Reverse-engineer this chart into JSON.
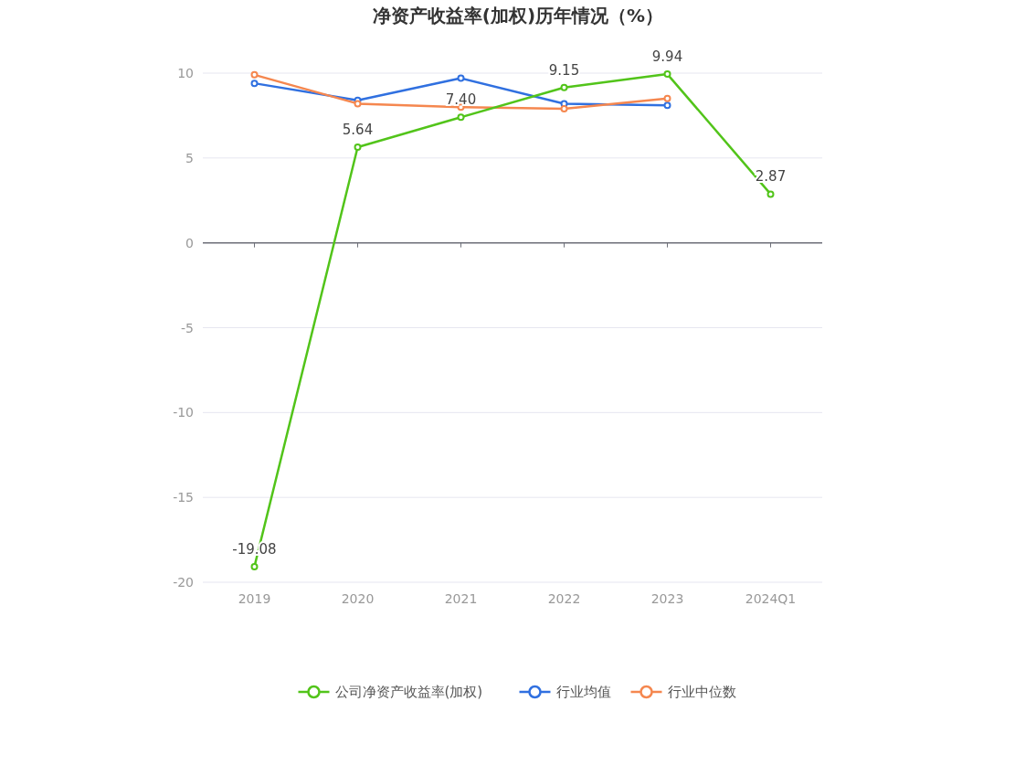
{
  "chart_data": {
    "type": "line",
    "title": "净资产收益率(加权)历年情况（%）",
    "categories": [
      "2019",
      "2020",
      "2021",
      "2022",
      "2023",
      "2024Q1"
    ],
    "series": [
      {
        "name": "公司净资产收益率(加权)",
        "color": "#52c41a",
        "values": [
          -19.08,
          5.64,
          7.4,
          9.15,
          9.94,
          2.87
        ],
        "value_labels": [
          "-19.08",
          "5.64",
          "7.40",
          "9.15",
          "9.94",
          "2.87"
        ]
      },
      {
        "name": "行业均值",
        "color": "#3070e0",
        "values": [
          9.4,
          8.4,
          9.7,
          8.2,
          8.1,
          null
        ]
      },
      {
        "name": "行业中位数",
        "color": "#f5874f",
        "values": [
          9.9,
          8.2,
          8.0,
          7.9,
          8.5,
          null
        ]
      }
    ],
    "ylim": [
      -20,
      10
    ],
    "yticks": [
      -20,
      -15,
      -10,
      -5,
      0,
      5,
      10
    ],
    "grid": "y",
    "legend": "bottom",
    "marker": "circle",
    "line_style": "solid"
  }
}
